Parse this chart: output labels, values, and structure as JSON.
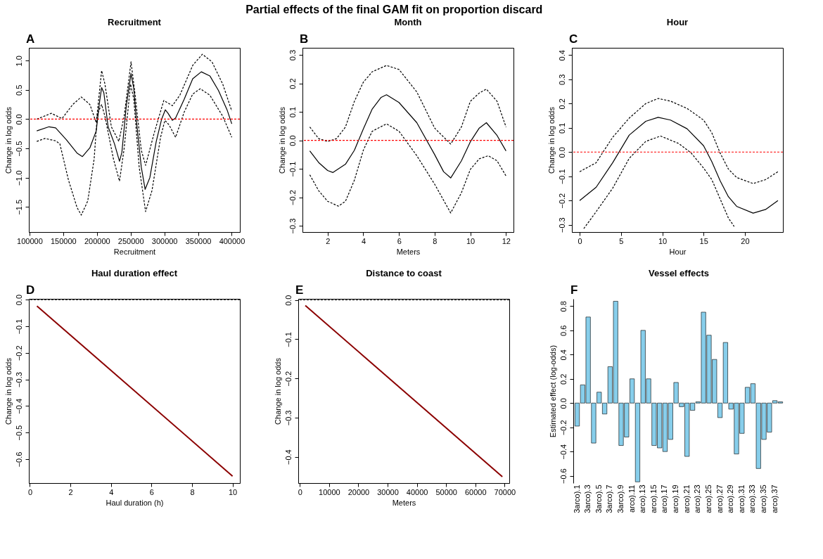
{
  "chart_data": [
    {
      "type": "line",
      "title": "Recruitment",
      "xlabel": "Recruitment",
      "ylabel": "Change in log odds",
      "annotations": [
        "A",
        "Partial effects of the final GAM fit on proportion discard"
      ],
      "xlim": [
        99050,
        412000
      ],
      "xticks": [
        100000,
        150000,
        200000,
        250000,
        300000,
        350000,
        400000
      ],
      "ylim": [
        -1.93,
        1.22
      ],
      "yticks": [
        -1.5,
        {
          "value": -1,
          "label": "−1.0"
        },
        -0.5,
        {
          "value": 0,
          "label": "0.0"
        },
        0.5,
        {
          "value": 1,
          "label": "1.0"
        }
      ],
      "series": [
        {
          "color": "#000000",
          "line_style": "solid",
          "x": [
            110800,
            129000,
            138800,
            154600,
            170500,
            178500,
            189600,
            199000,
            204000,
            207000,
            210300,
            216600,
            226000,
            233500,
            237000,
            243600,
            250600,
            254700,
            259500,
            265800,
            271500,
            278500,
            288000,
            296000,
            301400,
            305500,
            311900,
            316700,
            329400,
            342100,
            354800,
            367500,
            380300,
            393000,
            400000
          ],
          "values": [
            -0.2,
            -0.13,
            -0.15,
            -0.35,
            -0.58,
            -0.64,
            -0.49,
            -0.2,
            0.3,
            0.54,
            0.45,
            -0.13,
            -0.42,
            -0.72,
            -0.57,
            0.23,
            0.78,
            0.52,
            -0.13,
            -0.82,
            -1.2,
            -1.0,
            -0.38,
            0.0,
            0.16,
            0.1,
            -0.02,
            0.02,
            0.34,
            0.69,
            0.81,
            0.74,
            0.49,
            0.16,
            -0.08
          ]
        },
        {
          "color": "#000000",
          "line_style": "dashed",
          "x": [
            110800,
            132400,
            148300,
            164100,
            176800,
            189600,
            199000,
            207000,
            211900,
            221400,
            232500,
            240400,
            250600,
            256300,
            265800,
            272200,
            284900,
            299200,
            311900,
            323000,
            342100,
            356400,
            370700,
            386600,
            400000
          ],
          "values": [
            0.0,
            0.1,
            0.01,
            0.25,
            0.38,
            0.25,
            -0.06,
            0.83,
            0.6,
            -0.13,
            -0.38,
            0.05,
            0.98,
            0.45,
            -0.53,
            -0.79,
            -0.24,
            0.32,
            0.23,
            0.41,
            0.92,
            1.11,
            0.98,
            0.6,
            0.14
          ]
        },
        {
          "color": "#000000",
          "line_style": "dashed",
          "x": [
            110800,
            122900,
            138800,
            145000,
            157800,
            170500,
            176800,
            186400,
            195900,
            200700,
            207000,
            211900,
            224500,
            233500,
            240400,
            249900,
            254700,
            262700,
            272200,
            281700,
            294400,
            300800,
            307100,
            316700,
            329400,
            342100,
            353200,
            367500,
            386600,
            400000
          ],
          "values": [
            -0.38,
            -0.33,
            -0.37,
            -0.42,
            -1.04,
            -1.51,
            -1.64,
            -1.4,
            -0.68,
            0.09,
            0.25,
            0.05,
            -0.68,
            -1.06,
            -0.5,
            0.6,
            0.34,
            -0.82,
            -1.58,
            -1.22,
            -0.31,
            -0.02,
            -0.1,
            -0.31,
            0.12,
            0.43,
            0.52,
            0.41,
            0.05,
            -0.31
          ]
        }
      ],
      "ref_lines": [
        {
          "axis": "y",
          "value": 0,
          "color": "#ff0000",
          "line_style": "dashed"
        }
      ]
    },
    {
      "type": "line",
      "title": "Month",
      "xlabel": "Meters",
      "ylabel": "Change in log odds",
      "annotations": [
        "B"
      ],
      "xlim": [
        0.59,
        12.42
      ],
      "xticks": [
        2,
        4,
        6,
        8,
        10,
        12
      ],
      "ylim": [
        -0.322,
        0.325
      ],
      "yticks": [
        -0.3,
        -0.2,
        -0.1,
        {
          "value": 0,
          "label": "0.0"
        },
        0.1,
        0.2,
        0.3
      ],
      "series": [
        {
          "color": "#000000",
          "line_style": "solid",
          "x": [
            1,
            1.5,
            2,
            2.3,
            3,
            3.5,
            4,
            4.5,
            5,
            5.3,
            6,
            7,
            8,
            8.5,
            8.9,
            9.5,
            10,
            10.5,
            10.9,
            11.5,
            12
          ],
          "values": [
            -0.037,
            -0.078,
            -0.106,
            -0.113,
            -0.084,
            -0.035,
            0.04,
            0.11,
            0.151,
            0.16,
            0.133,
            0.062,
            -0.05,
            -0.11,
            -0.132,
            -0.072,
            -0.005,
            0.043,
            0.062,
            0.017,
            -0.037
          ]
        },
        {
          "color": "#000000",
          "line_style": "dashed",
          "x": [
            1,
            1.5,
            2,
            2.5,
            3,
            3.5,
            4,
            4.5,
            5.3,
            6,
            7,
            8,
            8.9,
            9.5,
            10,
            10.5,
            10.9,
            11.5,
            12
          ],
          "values": [
            0.047,
            0.006,
            -0.004,
            0.006,
            0.047,
            0.137,
            0.204,
            0.241,
            0.263,
            0.249,
            0.17,
            0.043,
            -0.013,
            0.047,
            0.137,
            0.166,
            0.18,
            0.137,
            0.047
          ]
        },
        {
          "color": "#000000",
          "line_style": "dashed",
          "x": [
            1,
            1.5,
            2,
            2.6,
            3,
            3.5,
            4,
            4.5,
            5.3,
            6,
            7,
            8,
            8.9,
            9.5,
            10,
            10.5,
            11,
            11.5,
            12
          ],
          "values": [
            -0.121,
            -0.177,
            -0.214,
            -0.231,
            -0.214,
            -0.14,
            -0.035,
            0.032,
            0.058,
            0.032,
            -0.054,
            -0.154,
            -0.255,
            -0.184,
            -0.102,
            -0.065,
            -0.054,
            -0.072,
            -0.125
          ]
        }
      ],
      "ref_lines": [
        {
          "axis": "y",
          "value": 0,
          "color": "#ff0000",
          "line_style": "dashed"
        }
      ]
    },
    {
      "type": "line",
      "title": "Hour",
      "xlabel": "Hour",
      "ylabel": "Change in log odds",
      "annotations": [
        "C"
      ],
      "xlim": [
        -0.94,
        24.6
      ],
      "xticks": [
        0,
        5,
        10,
        15,
        20
      ],
      "ylim": [
        -0.33,
        0.43
      ],
      "yticks": [
        -0.3,
        -0.2,
        -0.1,
        {
          "value": 0,
          "label": "0.0"
        },
        0.1,
        0.2,
        0.3,
        0.4
      ],
      "series": [
        {
          "color": "#000000",
          "line_style": "solid",
          "x": [
            0,
            2,
            4,
            6,
            8,
            9.5,
            11,
            13,
            15,
            16,
            17,
            18,
            19,
            21,
            22.5,
            24
          ],
          "values": [
            -0.2,
            -0.145,
            -0.044,
            0.07,
            0.127,
            0.143,
            0.132,
            0.096,
            0.026,
            -0.04,
            -0.118,
            -0.184,
            -0.224,
            -0.252,
            -0.237,
            -0.2
          ]
        },
        {
          "color": "#000000",
          "line_style": "dashed",
          "x": [
            0,
            2,
            3,
            4,
            6,
            8,
            9.5,
            11,
            13,
            15,
            16,
            17,
            18,
            19,
            21,
            22.5,
            24
          ],
          "values": [
            -0.081,
            -0.044,
            0.009,
            0.061,
            0.14,
            0.2,
            0.221,
            0.21,
            0.18,
            0.132,
            0.079,
            -0.004,
            -0.07,
            -0.105,
            -0.13,
            -0.114,
            -0.081
          ]
        },
        {
          "color": "#000000",
          "line_style": "dashed",
          "x": [
            0.5,
            2,
            4,
            6,
            8,
            9.8,
            12,
            13.5,
            15,
            16,
            17,
            18,
            18.7
          ],
          "values": [
            -0.316,
            -0.246,
            -0.149,
            -0.026,
            0.044,
            0.066,
            0.035,
            -0.004,
            -0.066,
            -0.114,
            -0.193,
            -0.272,
            -0.307
          ]
        }
      ],
      "ref_lines": [
        {
          "axis": "y",
          "value": 0,
          "color": "#ff0000",
          "line_style": "dashed"
        }
      ]
    },
    {
      "type": "line",
      "title": "Haul duration effect",
      "xlabel": "Haul duration (h)",
      "ylabel": "Change in log odds",
      "annotations": [
        "D"
      ],
      "xlim": [
        -0.05,
        10.36
      ],
      "xticks": [
        0,
        2,
        4,
        6,
        8,
        10
      ],
      "ylim": [
        -0.69,
        0.003
      ],
      "yticks": [
        -0.6,
        -0.5,
        -0.4,
        -0.3,
        -0.2,
        -0.1,
        {
          "value": 0,
          "label": "0.0"
        }
      ],
      "series": [
        {
          "color": "#8b0000",
          "line_style": "solid",
          "x": [
            0.35,
            10
          ],
          "values": [
            -0.024,
            -0.664
          ]
        }
      ],
      "ref_lines": [
        {
          "axis": "y",
          "value": 0,
          "color": "#000000",
          "line_style": "dashed"
        }
      ]
    },
    {
      "type": "line",
      "title": "Distance to coast",
      "xlabel": "Meters",
      "ylabel": "Change in log odds",
      "annotations": [
        "E"
      ],
      "xlim": [
        -550,
        71600
      ],
      "xticks": [
        0,
        10000,
        20000,
        30000,
        40000,
        50000,
        60000,
        70000
      ],
      "ylim": [
        -0.467,
        0.003
      ],
      "yticks": [
        -0.4,
        -0.3,
        -0.2,
        -0.1,
        {
          "value": 0,
          "label": "0.0"
        }
      ],
      "series": [
        {
          "color": "#8b0000",
          "line_style": "solid",
          "x": [
            1870,
            69230
          ],
          "values": [
            -0.014,
            -0.451
          ]
        }
      ],
      "ref_lines": [
        {
          "axis": "y",
          "value": 0,
          "color": "#555555",
          "line_style": "dashed"
        }
      ]
    },
    {
      "type": "bar",
      "title": "Vessel effects",
      "ylabel": "Estimated effect (log-odds)",
      "annotations": [
        "F"
      ],
      "ylim": [
        -0.66,
        0.86
      ],
      "yticks": [
        -0.6,
        -0.4,
        -0.2,
        {
          "value": 0,
          "label": "0.0"
        },
        0.2,
        0.4,
        0.6,
        0.8
      ],
      "categories": [
        "3arco).1",
        null,
        "3arco).3",
        null,
        "3arco).5",
        null,
        "3arco).7",
        null,
        "3arco).9",
        null,
        "arco).11",
        null,
        "arco).13",
        null,
        "arco).15",
        null,
        "arco).17",
        null,
        "arco).19",
        null,
        "arco).21",
        null,
        "arco).23",
        null,
        "arco).25",
        null,
        "arco).27",
        null,
        "arco).29",
        null,
        "arco).31",
        null,
        "arco).33",
        null,
        "arco).35",
        null,
        "arco).37",
        null
      ],
      "series": [
        {
          "color": "#87ceeb",
          "values": [
            -0.19,
            0.15,
            0.71,
            -0.33,
            0.09,
            -0.09,
            0.3,
            0.84,
            -0.35,
            -0.28,
            0.2,
            -0.65,
            0.6,
            0.2,
            -0.35,
            -0.37,
            -0.4,
            -0.3,
            0.17,
            -0.03,
            -0.44,
            -0.06,
            0.01,
            0.75,
            0.56,
            0.36,
            -0.12,
            0.5,
            -0.05,
            -0.42,
            -0.25,
            0.13,
            0.16,
            -0.54,
            -0.3,
            -0.24,
            0.02,
            0.01
          ]
        }
      ]
    }
  ]
}
